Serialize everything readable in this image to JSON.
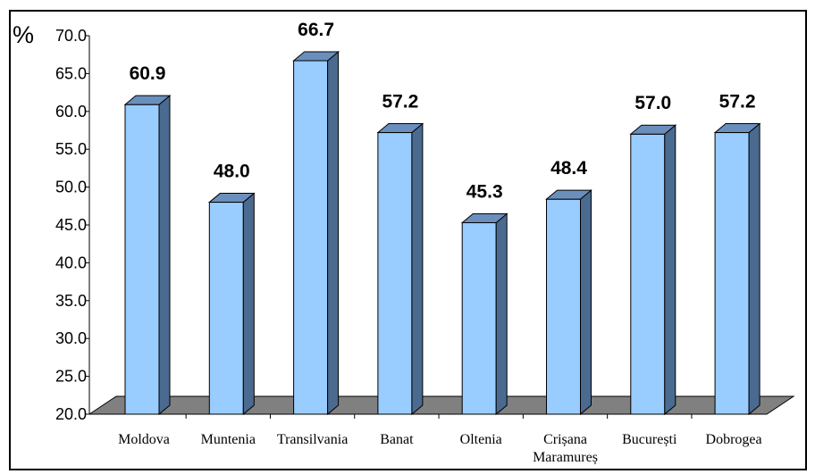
{
  "chart_data": {
    "type": "bar",
    "title": "",
    "xlabel": "",
    "ylabel": "%",
    "ylim": [
      20,
      70
    ],
    "yticks": [
      "20.0",
      "25.0",
      "30.0",
      "35.0",
      "40.0",
      "45.0",
      "50.0",
      "55.0",
      "60.0",
      "65.0",
      "70.0"
    ],
    "categories": [
      {
        "label": "Moldova",
        "label2": ""
      },
      {
        "label": "Muntenia",
        "label2": ""
      },
      {
        "label": "Transilvania",
        "label2": ""
      },
      {
        "label": "Banat",
        "label2": ""
      },
      {
        "label": "Oltenia",
        "label2": ""
      },
      {
        "label": "Crișana",
        "label2": "Maramureș"
      },
      {
        "label": "București",
        "label2": ""
      },
      {
        "label": "Dobrogea",
        "label2": ""
      }
    ],
    "values": [
      60.9,
      48.0,
      66.7,
      57.2,
      45.3,
      48.4,
      57.0,
      57.2
    ],
    "data_labels": [
      "60.9",
      "48.0",
      "66.7",
      "57.2",
      "45.3",
      "48.4",
      "57.0",
      "57.2"
    ],
    "style": "3d-column",
    "grid": false,
    "legend": "none",
    "colors": {
      "bar_front": "#99ccff",
      "bar_side": "#4a6a90",
      "bar_top": "#6b8fbd",
      "floor": "#808080",
      "text": "#000000"
    }
  }
}
